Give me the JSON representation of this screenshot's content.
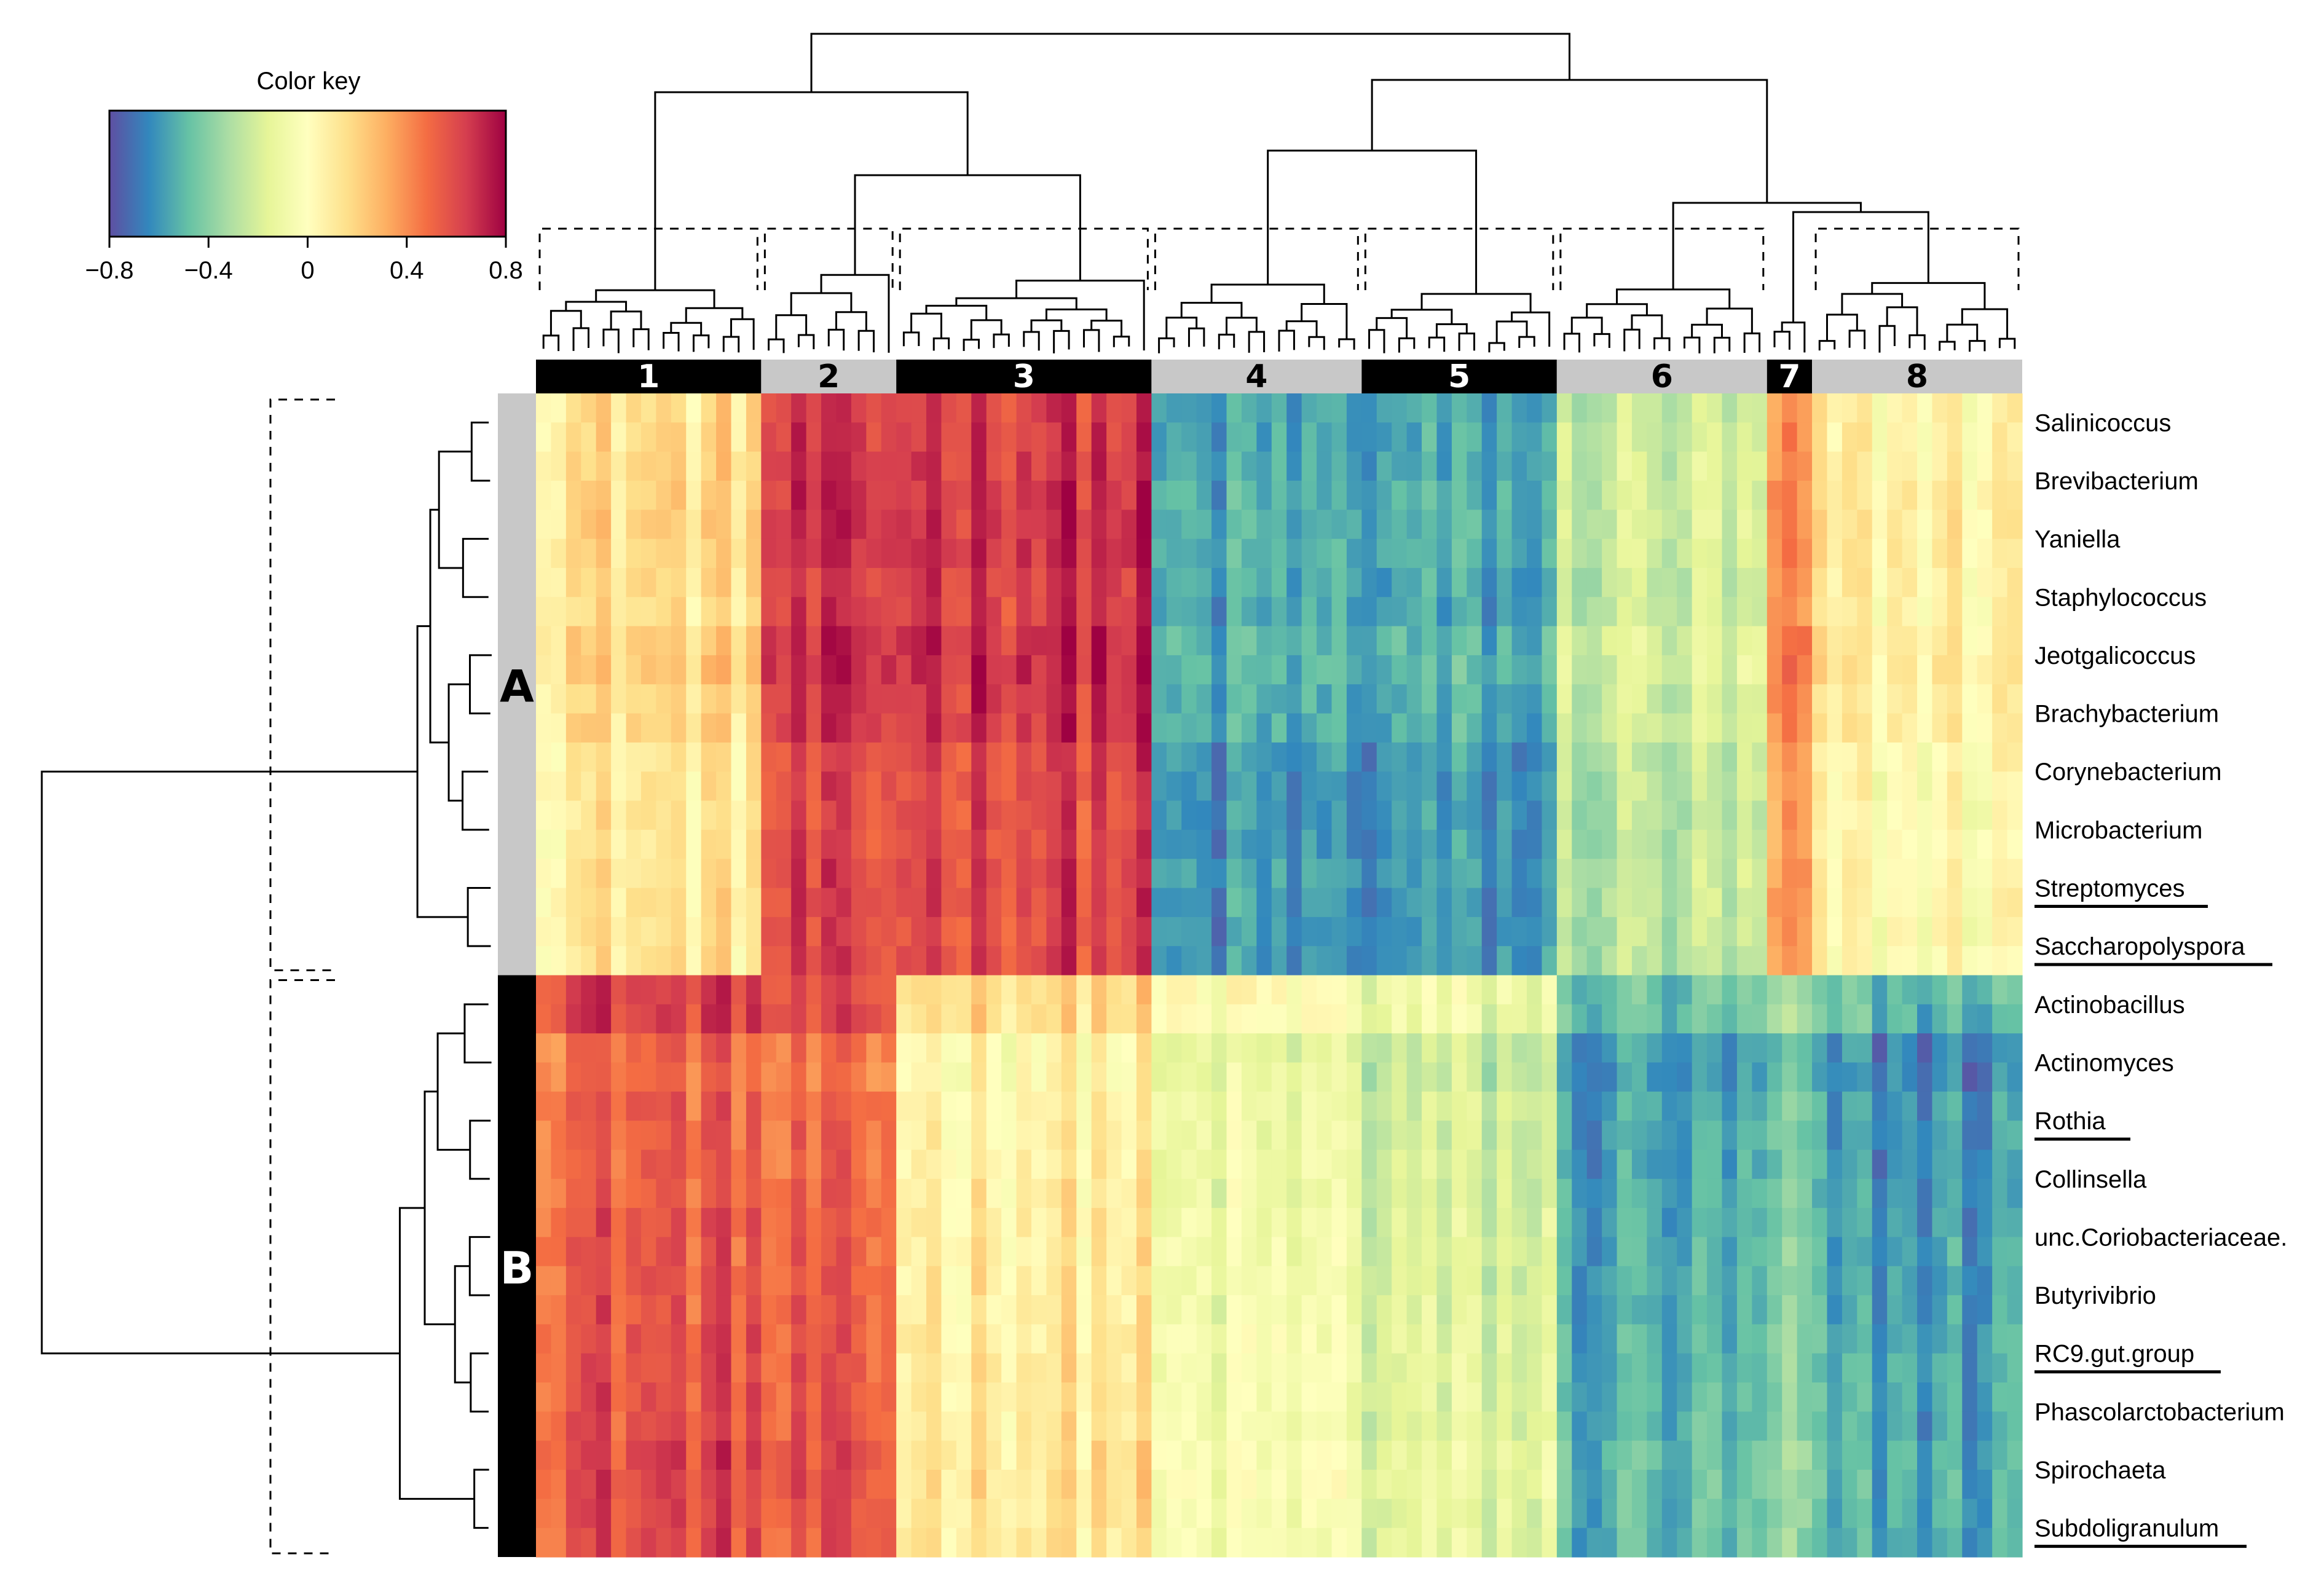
{
  "chart_data": {
    "type": "heatmap",
    "title": "",
    "color_key": {
      "title": "Color key",
      "range": [
        -0.8,
        0.8
      ],
      "ticks": [
        "−0.8",
        "−0.4",
        "0",
        "0.4",
        "0.8"
      ],
      "palette": [
        "#5e4fa2",
        "#3288bd",
        "#66c2a5",
        "#abdda4",
        "#e6f598",
        "#ffffbf",
        "#fee08b",
        "#fdae61",
        "#f46d43",
        "#d53e4f",
        "#9e0142"
      ]
    },
    "column_clusters": [
      {
        "label": "1",
        "columns": 15,
        "band": "black"
      },
      {
        "label": "2",
        "columns": 9,
        "band": "gray"
      },
      {
        "label": "3",
        "columns": 17,
        "band": "black"
      },
      {
        "label": "4",
        "columns": 14,
        "band": "gray"
      },
      {
        "label": "5",
        "columns": 13,
        "band": "black"
      },
      {
        "label": "6",
        "columns": 14,
        "band": "gray"
      },
      {
        "label": "7",
        "columns": 3,
        "band": "black"
      },
      {
        "label": "8",
        "columns": 14,
        "band": "gray"
      }
    ],
    "row_groups": [
      {
        "label": "A",
        "rows": [
          "Salinicoccus",
          "Brevibacterium",
          "Yaniella",
          "Staphylococcus",
          "Jeotgalicoccus",
          "Brachybacterium",
          "Corynebacterium",
          "Microbacterium",
          "Streptomyces",
          "Saccharopolyspora"
        ]
      },
      {
        "label": "B",
        "rows": [
          "Actinobacillus",
          "Actinomyces",
          "Rothia",
          "Collinsella",
          "unc.Coriobacteriaceae.",
          "Butyrivibrio",
          "RC9.gut.group",
          "Phascolarctobacterium",
          "Spirochaeta",
          "Subdoligranulum"
        ]
      }
    ],
    "underlined_rows": [
      "Streptomyces",
      "Saccharopolyspora",
      "Rothia",
      "RC9.gut.group",
      "Subdoligranulum"
    ],
    "cluster_mean_correlation": {
      "clusters": [
        "1",
        "2",
        "3",
        "4",
        "5",
        "6",
        "7",
        "8"
      ],
      "A": [
        0.15,
        0.6,
        0.65,
        -0.58,
        -0.58,
        -0.25,
        0.35,
        0.05
      ],
      "B": [
        0.55,
        0.48,
        0.1,
        -0.1,
        -0.2,
        -0.55,
        -0.45,
        -0.58
      ]
    },
    "row_offsets": {
      "A": [
        0.0,
        0.02,
        0.03,
        0.0,
        0.06,
        0.02,
        -0.04,
        -0.05,
        -0.02,
        -0.04
      ],
      "B": [
        0.08,
        -0.06,
        -0.02,
        -0.02,
        0.0,
        0.0,
        0.02,
        0.02,
        0.05,
        0.03
      ]
    }
  }
}
